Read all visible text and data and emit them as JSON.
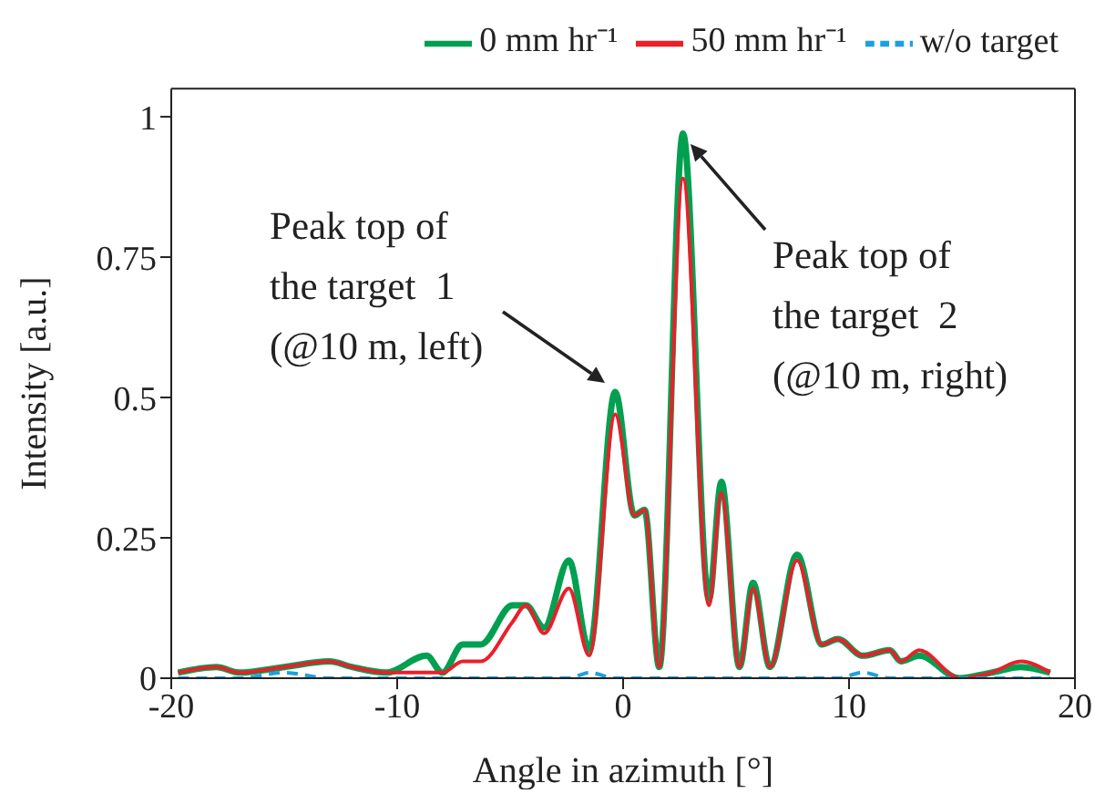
{
  "chart_data": {
    "type": "line",
    "xlabel": "Angle in azimuth [°]",
    "ylabel": "Intensity [a.u.]",
    "x": [
      -19.7,
      -18,
      -17,
      -15,
      -13,
      -12,
      -10.5,
      -8.7,
      -8,
      -7.1,
      -6.3,
      -4.9,
      -4.3,
      -3.5,
      -2.4,
      -1.5,
      -0.35,
      0.5,
      0.95,
      1.6,
      2.65,
      3.8,
      4.35,
      5.15,
      5.75,
      6.5,
      7.7,
      8.8,
      9.5,
      10.6,
      11.8,
      12.3,
      13.1,
      14.9,
      16.3,
      17.6,
      18.9
    ],
    "series": [
      {
        "name": "0 mm hr⁻¹",
        "color": "#00a050",
        "line_style": "solid",
        "values": [
          0.01,
          0.02,
          0.01,
          0.02,
          0.03,
          0.02,
          0.01,
          0.04,
          0.01,
          0.06,
          0.06,
          0.13,
          0.13,
          0.09,
          0.21,
          0.05,
          0.51,
          0.29,
          0.3,
          0.02,
          0.97,
          0.14,
          0.35,
          0.02,
          0.17,
          0.02,
          0.22,
          0.06,
          0.07,
          0.04,
          0.05,
          0.03,
          0.04,
          0,
          0.01,
          0.02,
          0.01
        ]
      },
      {
        "name": "50 mm hr⁻¹",
        "color": "#e8202a",
        "line_style": "solid",
        "values": [
          0.01,
          0.02,
          0.01,
          0.02,
          0.03,
          0.02,
          0.01,
          0.01,
          0.01,
          0.03,
          0.03,
          0.1,
          0.13,
          0.08,
          0.16,
          0.04,
          0.47,
          0.29,
          0.3,
          0.02,
          0.89,
          0.13,
          0.33,
          0.02,
          0.16,
          0.02,
          0.21,
          0.06,
          0.07,
          0.04,
          0.05,
          0.03,
          0.05,
          0,
          0.01,
          0.03,
          0.01
        ]
      },
      {
        "name": "w/o target",
        "color": "#1ca0e0",
        "line_style": "dashed",
        "values": [
          0,
          0,
          0,
          0.01,
          0,
          0,
          0,
          0,
          0,
          0,
          0,
          0,
          0,
          0,
          0,
          0.01,
          0,
          0,
          0,
          0,
          0,
          0,
          0,
          0,
          0,
          0,
          0,
          0,
          0,
          0.01,
          0,
          0,
          0,
          0,
          0,
          0,
          0
        ]
      }
    ],
    "annotations": [
      "Peak top of\nthe target  1\n(@10 m, left)",
      "Peak top of\nthe target  2\n(@10 m, right)"
    ],
    "xlim": [
      -20,
      20
    ],
    "xticks": [
      -20,
      -10,
      0,
      10,
      20
    ],
    "ylim": [
      0,
      1.05
    ],
    "yticks": [
      0,
      0.25,
      0.5,
      0.75,
      1
    ],
    "grid": false,
    "legend": "top right",
    "marker": "none"
  }
}
